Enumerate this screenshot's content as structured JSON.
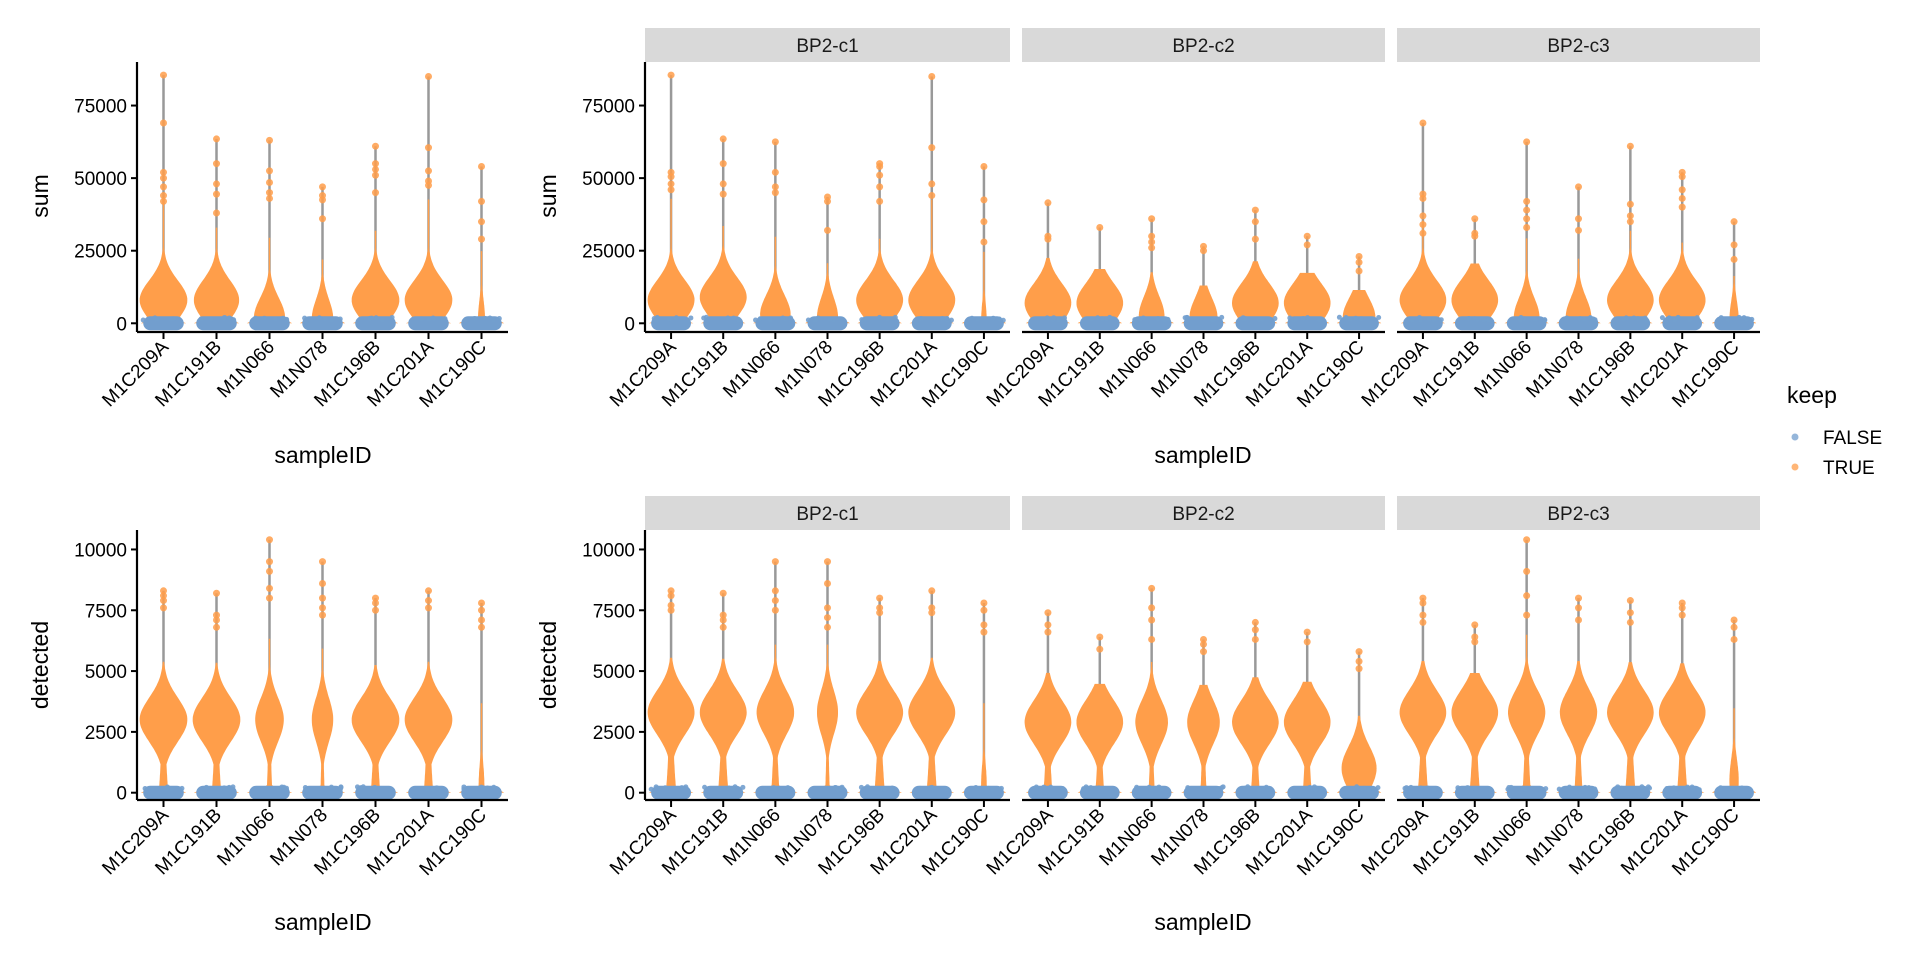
{
  "chart_data": {
    "type": "violin",
    "description": "Per-sample QC metric violins (sum and detected) coloured by keep, overall and faceted by BP2 cluster",
    "categories": [
      "M1C209A",
      "M1C191B",
      "M1N066",
      "M1N078",
      "M1C196B",
      "M1C201A",
      "M1C190C"
    ],
    "xlabel": "sampleID",
    "legend": {
      "title": "keep",
      "position": "right",
      "entries": [
        {
          "label": "FALSE",
          "color": "#729ECE"
        },
        {
          "label": "TRUE",
          "color": "#FF9E4A"
        }
      ]
    },
    "colors": {
      "keep_true": "#FF9E4A",
      "keep_false": "#729ECE",
      "whisker": "#999999",
      "strip_bg": "#D9D9D9"
    },
    "panels": [
      {
        "id": "sum-all",
        "row": 0,
        "facet": null,
        "ylabel": "sum",
        "ylim": [
          -3000,
          90000
        ],
        "yticks": [
          0,
          25000,
          50000,
          75000
        ],
        "series": [
          {
            "category": "M1C209A",
            "max": 85500,
            "mode": 8000,
            "width": 1.0,
            "outliers": [
              69000,
              52000,
              50000,
              47000,
              44000,
              42000
            ]
          },
          {
            "category": "M1C191B",
            "max": 63500,
            "mode": 8000,
            "width": 0.95,
            "outliers": [
              55000,
              48000,
              44500,
              38000
            ]
          },
          {
            "category": "M1N066",
            "max": 63000,
            "mode": 2000,
            "width": 0.65,
            "outliers": [
              52500,
              48500,
              45000,
              43000
            ]
          },
          {
            "category": "M1N078",
            "max": 47000,
            "mode": 1500,
            "width": 0.45,
            "outliers": [
              44000,
              42500,
              36000
            ]
          },
          {
            "category": "M1C196B",
            "max": 61000,
            "mode": 8000,
            "width": 1.0,
            "outliers": [
              55000,
              53000,
              51000,
              45000
            ]
          },
          {
            "category": "M1C201A",
            "max": 85000,
            "mode": 8000,
            "width": 1.0,
            "outliers": [
              60500,
              52500,
              49000,
              47500
            ]
          },
          {
            "category": "M1C190C",
            "max": 54000,
            "mode": 1000,
            "width": 0.15,
            "outliers": [
              42000,
              35000,
              29000
            ]
          }
        ]
      },
      {
        "id": "sum-c1",
        "row": 0,
        "facet": "BP2-c1",
        "ylabel": "sum",
        "ylim": [
          -3000,
          90000
        ],
        "yticks": [
          0,
          25000,
          50000,
          75000
        ],
        "series": [
          {
            "category": "M1C209A",
            "max": 85500,
            "mode": 8000,
            "width": 1.0,
            "outliers": [
              52000,
              50500,
              48000,
              46000
            ]
          },
          {
            "category": "M1C191B",
            "max": 63500,
            "mode": 9000,
            "width": 1.0,
            "outliers": [
              55000,
              48000,
              44500
            ]
          },
          {
            "category": "M1N066",
            "max": 62500,
            "mode": 3000,
            "width": 0.65,
            "outliers": [
              52000,
              47000,
              45000
            ]
          },
          {
            "category": "M1N078",
            "max": 43500,
            "mode": 2000,
            "width": 0.45,
            "outliers": [
              42000,
              32000
            ]
          },
          {
            "category": "M1C196B",
            "max": 55000,
            "mode": 8000,
            "width": 1.0,
            "outliers": [
              54000,
              51000,
              47000,
              42000
            ]
          },
          {
            "category": "M1C201A",
            "max": 85000,
            "mode": 8000,
            "width": 1.0,
            "outliers": [
              60500,
              48000,
              44000
            ]
          },
          {
            "category": "M1C190C",
            "max": 54000,
            "mode": 500,
            "width": 0.12,
            "outliers": [
              42500,
              35000,
              28000
            ]
          }
        ]
      },
      {
        "id": "sum-c2",
        "row": 0,
        "facet": "BP2-c2",
        "ylabel": "sum",
        "ylim": [
          -3000,
          90000
        ],
        "yticks": [
          0,
          25000,
          50000,
          75000
        ],
        "series": [
          {
            "category": "M1C209A",
            "max": 41500,
            "mode": 7000,
            "width": 1.0,
            "outliers": [
              30000,
              29000
            ]
          },
          {
            "category": "M1C191B",
            "max": 33000,
            "mode": 7000,
            "width": 1.0,
            "outliers": []
          },
          {
            "category": "M1N066",
            "max": 36000,
            "mode": 2500,
            "width": 0.55,
            "outliers": [
              30000,
              28000,
              26000
            ]
          },
          {
            "category": "M1N078",
            "max": 26500,
            "mode": 2000,
            "width": 0.6,
            "outliers": [
              25000
            ]
          },
          {
            "category": "M1C196B",
            "max": 39000,
            "mode": 7000,
            "width": 1.0,
            "outliers": [
              35000,
              29000
            ]
          },
          {
            "category": "M1C201A",
            "max": 30000,
            "mode": 7000,
            "width": 1.0,
            "outliers": [
              27000
            ]
          },
          {
            "category": "M1C190C",
            "max": 23000,
            "mode": 2000,
            "width": 0.7,
            "outliers": [
              21000,
              18000
            ]
          }
        ]
      },
      {
        "id": "sum-c3",
        "row": 0,
        "facet": "BP2-c3",
        "ylabel": "sum",
        "ylim": [
          -3000,
          90000
        ],
        "yticks": [
          0,
          25000,
          50000,
          75000
        ],
        "series": [
          {
            "category": "M1C209A",
            "max": 69000,
            "mode": 8000,
            "width": 1.0,
            "outliers": [
              44500,
              43000,
              37000,
              34000,
              31000
            ]
          },
          {
            "category": "M1C191B",
            "max": 36000,
            "mode": 8000,
            "width": 1.0,
            "outliers": [
              31000,
              30000
            ]
          },
          {
            "category": "M1N066",
            "max": 62500,
            "mode": 2000,
            "width": 0.55,
            "outliers": [
              42000,
              39000,
              36000,
              33000
            ]
          },
          {
            "category": "M1N078",
            "max": 47000,
            "mode": 2000,
            "width": 0.55,
            "outliers": [
              36000,
              32000
            ]
          },
          {
            "category": "M1C196B",
            "max": 61000,
            "mode": 8000,
            "width": 1.0,
            "outliers": [
              41000,
              37000,
              35000
            ]
          },
          {
            "category": "M1C201A",
            "max": 52000,
            "mode": 8000,
            "width": 1.0,
            "outliers": [
              50500,
              46000,
              43000,
              40000
            ]
          },
          {
            "category": "M1C190C",
            "max": 35000,
            "mode": 1000,
            "width": 0.2,
            "outliers": [
              27000,
              22000
            ]
          }
        ]
      },
      {
        "id": "detected-all",
        "row": 1,
        "facet": null,
        "ylabel": "detected",
        "ylim": [
          -300,
          10800
        ],
        "yticks": [
          0,
          2500,
          5000,
          7500,
          10000
        ],
        "series": [
          {
            "category": "M1C209A",
            "max": 8300,
            "mode": 3000,
            "width": 1.0,
            "outliers": [
              8100,
              7900,
              7600
            ]
          },
          {
            "category": "M1C191B",
            "max": 8200,
            "mode": 3000,
            "width": 1.0,
            "outliers": [
              7300,
              7100,
              6800
            ]
          },
          {
            "category": "M1N066",
            "max": 10400,
            "mode": 3000,
            "width": 0.6,
            "outliers": [
              9500,
              9100,
              8400,
              8000
            ]
          },
          {
            "category": "M1N078",
            "max": 9500,
            "mode": 3000,
            "width": 0.45,
            "outliers": [
              8600,
              8000,
              7600,
              7300
            ]
          },
          {
            "category": "M1C196B",
            "max": 8000,
            "mode": 3000,
            "width": 1.0,
            "outliers": [
              7800,
              7500
            ]
          },
          {
            "category": "M1C201A",
            "max": 8300,
            "mode": 3000,
            "width": 1.0,
            "outliers": [
              7900,
              7600
            ]
          },
          {
            "category": "M1C190C",
            "max": 7800,
            "mode": 300,
            "width": 0.12,
            "outliers": [
              7500,
              7100,
              6800
            ]
          }
        ]
      },
      {
        "id": "detected-c1",
        "row": 1,
        "facet": "BP2-c1",
        "ylabel": "detected",
        "ylim": [
          -300,
          10800
        ],
        "yticks": [
          0,
          2500,
          5000,
          7500,
          10000
        ],
        "series": [
          {
            "category": "M1C209A",
            "max": 8300,
            "mode": 3300,
            "width": 1.0,
            "outliers": [
              8100,
              7700,
              7500
            ]
          },
          {
            "category": "M1C191B",
            "max": 8200,
            "mode": 3300,
            "width": 1.0,
            "outliers": [
              7300,
              7100,
              6800
            ]
          },
          {
            "category": "M1N066",
            "max": 9500,
            "mode": 3300,
            "width": 0.8,
            "outliers": [
              8300,
              7900,
              7500
            ]
          },
          {
            "category": "M1N078",
            "max": 9500,
            "mode": 3300,
            "width": 0.45,
            "outliers": [
              8600,
              7600,
              7200,
              6800
            ]
          },
          {
            "category": "M1C196B",
            "max": 8000,
            "mode": 3300,
            "width": 1.0,
            "outliers": [
              7600,
              7400
            ]
          },
          {
            "category": "M1C201A",
            "max": 8300,
            "mode": 3300,
            "width": 1.0,
            "outliers": [
              7600,
              7400
            ]
          },
          {
            "category": "M1C190C",
            "max": 7800,
            "mode": 300,
            "width": 0.12,
            "outliers": [
              7500,
              6900,
              6600
            ]
          }
        ]
      },
      {
        "id": "detected-c2",
        "row": 1,
        "facet": "BP2-c2",
        "ylabel": "detected",
        "ylim": [
          -300,
          10800
        ],
        "yticks": [
          0,
          2500,
          5000,
          7500,
          10000
        ],
        "series": [
          {
            "category": "M1C209A",
            "max": 7400,
            "mode": 2900,
            "width": 1.0,
            "outliers": [
              6900,
              6600
            ]
          },
          {
            "category": "M1C191B",
            "max": 6400,
            "mode": 2900,
            "width": 1.0,
            "outliers": [
              5900
            ]
          },
          {
            "category": "M1N066",
            "max": 8400,
            "mode": 2900,
            "width": 0.7,
            "outliers": [
              7600,
              7100,
              6300
            ]
          },
          {
            "category": "M1N078",
            "max": 6300,
            "mode": 2900,
            "width": 0.7,
            "outliers": [
              6100,
              5800
            ]
          },
          {
            "category": "M1C196B",
            "max": 7000,
            "mode": 2900,
            "width": 1.0,
            "outliers": [
              6700,
              6300
            ]
          },
          {
            "category": "M1C201A",
            "max": 6600,
            "mode": 2900,
            "width": 1.0,
            "outliers": [
              6200
            ]
          },
          {
            "category": "M1C190C",
            "max": 5800,
            "mode": 1000,
            "width": 0.75,
            "outliers": [
              5400,
              5100
            ]
          }
        ]
      },
      {
        "id": "detected-c3",
        "row": 1,
        "facet": "BP2-c3",
        "ylabel": "detected",
        "ylim": [
          -300,
          10800
        ],
        "yticks": [
          0,
          2500,
          5000,
          7500,
          10000
        ],
        "series": [
          {
            "category": "M1C209A",
            "max": 8000,
            "mode": 3300,
            "width": 1.0,
            "outliers": [
              7800,
              7300,
              7000
            ]
          },
          {
            "category": "M1C191B",
            "max": 6900,
            "mode": 3300,
            "width": 1.0,
            "outliers": [
              6400,
              6200
            ]
          },
          {
            "category": "M1N066",
            "max": 10400,
            "mode": 3300,
            "width": 0.8,
            "outliers": [
              9100,
              8100,
              7300
            ]
          },
          {
            "category": "M1N078",
            "max": 8000,
            "mode": 3300,
            "width": 0.8,
            "outliers": [
              7600,
              7100
            ]
          },
          {
            "category": "M1C196B",
            "max": 7900,
            "mode": 3300,
            "width": 1.0,
            "outliers": [
              7400,
              7000
            ]
          },
          {
            "category": "M1C201A",
            "max": 7800,
            "mode": 3300,
            "width": 1.0,
            "outliers": [
              7600,
              7300
            ]
          },
          {
            "category": "M1C190C",
            "max": 7100,
            "mode": 500,
            "width": 0.2,
            "outliers": [
              6800,
              6300
            ]
          }
        ]
      }
    ]
  }
}
